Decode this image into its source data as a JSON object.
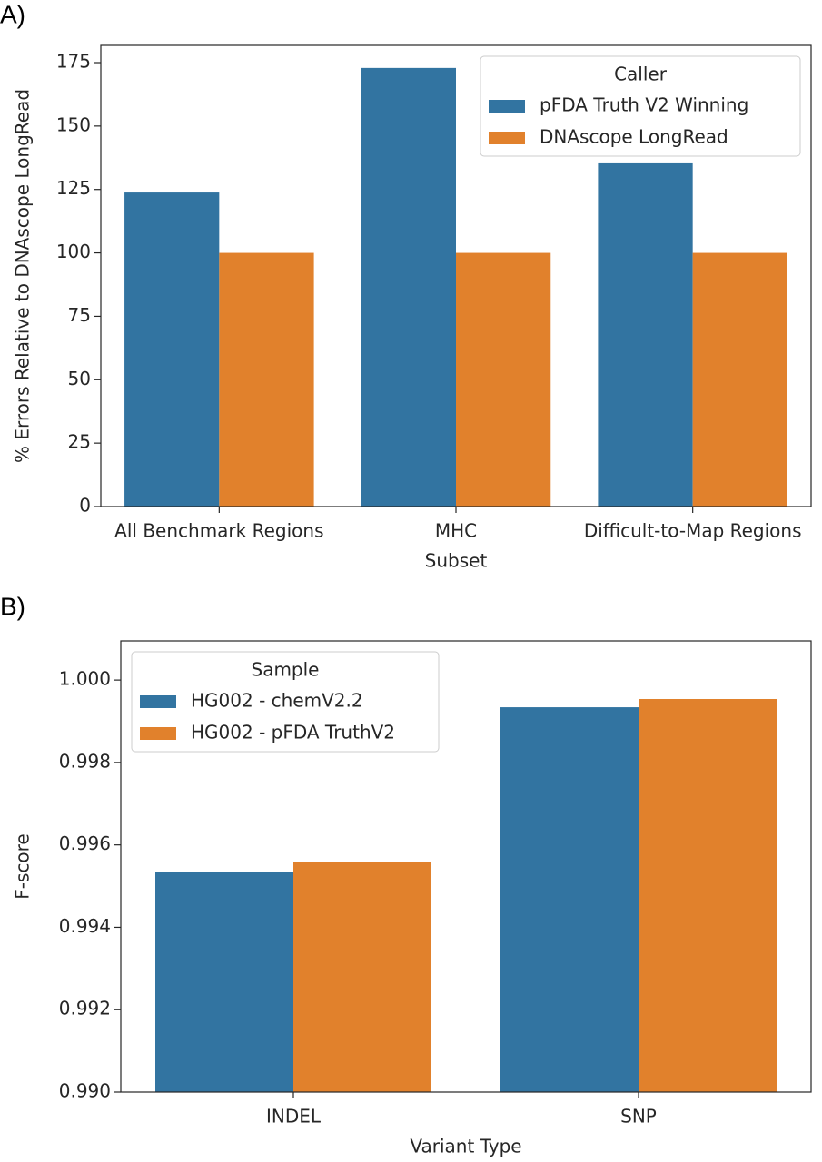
{
  "chart_data": [
    {
      "type": "bar",
      "panel_label": "A)",
      "x_label": "Subset",
      "y_label": "% Errors Relative to DNAscope LongRead",
      "categories": [
        "All Benchmark Regions",
        "MHC",
        "Difficult-to-Map Regions"
      ],
      "series": [
        {
          "name": "pFDA Truth V2 Winning",
          "color": "#3274a1",
          "values": [
            123.8,
            172.9,
            135.3
          ]
        },
        {
          "name": "DNAscope LongRead",
          "color": "#e1812c",
          "values": [
            100,
            100,
            100
          ]
        }
      ],
      "ylim": [
        0,
        181.8
      ],
      "yticks": [
        0,
        25,
        50,
        75,
        100,
        125,
        150,
        175
      ],
      "legend_title": "Caller",
      "legend_loc": "upper right"
    },
    {
      "type": "bar",
      "panel_label": "B)",
      "x_label": "Variant Type",
      "y_label": "F-score",
      "categories": [
        "INDEL",
        "SNP"
      ],
      "series": [
        {
          "name": "HG002 - chemV2.2",
          "color": "#3274a1",
          "values": [
            0.99535,
            0.99934
          ]
        },
        {
          "name": "HG002 - pFDA TruthV2",
          "color": "#e1812c",
          "values": [
            0.99559,
            0.99954
          ]
        }
      ],
      "ylim": [
        0.99,
        1.00095
      ],
      "yticks": [
        {
          "value": 0.99,
          "label": "0.990"
        },
        {
          "value": 0.992,
          "label": "0.992"
        },
        {
          "value": 0.994,
          "label": "0.994"
        },
        {
          "value": 0.996,
          "label": "0.996"
        },
        {
          "value": 0.998,
          "label": "0.998"
        },
        {
          "value": 1.0,
          "label": "1.000"
        }
      ],
      "legend_title": "Sample",
      "legend_loc": "upper left"
    }
  ]
}
